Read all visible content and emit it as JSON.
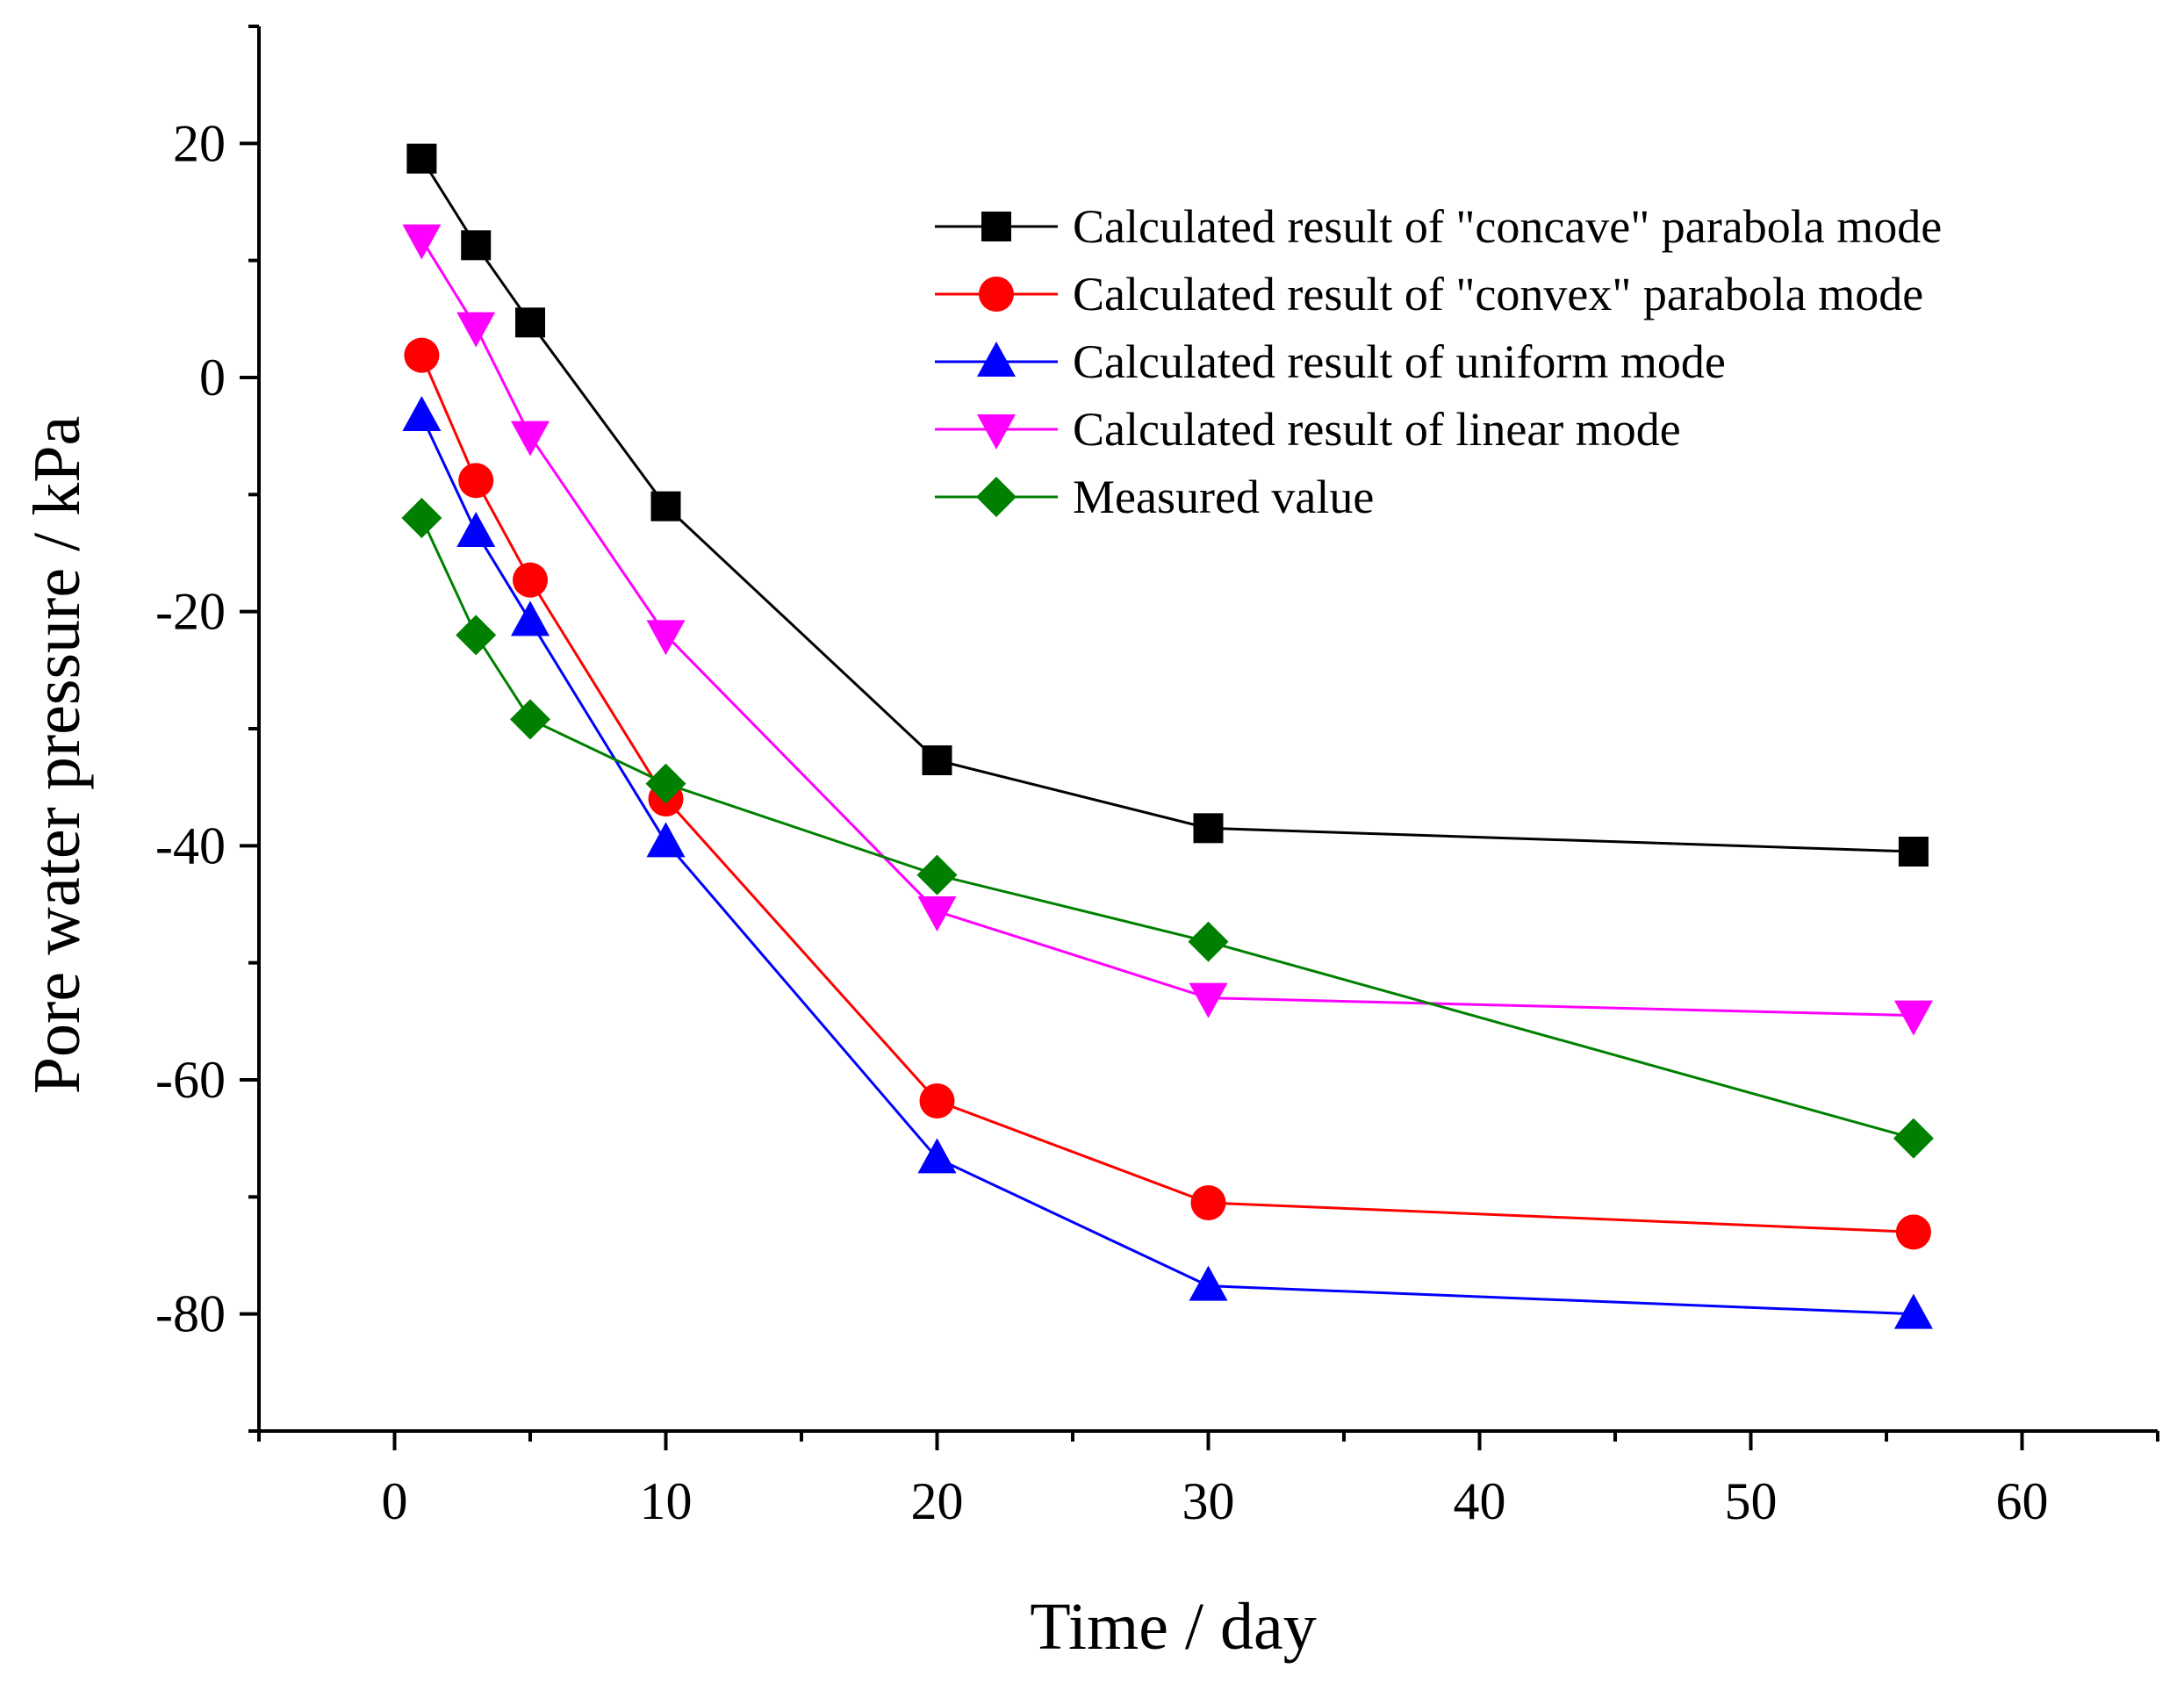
{
  "chart_data": {
    "type": "line",
    "title": "",
    "xlabel": "Time / day",
    "ylabel": "Pore water pressure / kPa",
    "xlim": [
      -5,
      65
    ],
    "ylim": [
      -90,
      30
    ],
    "xticks": [
      0,
      10,
      20,
      30,
      40,
      50,
      60
    ],
    "xtick_labels": [
      "0",
      "10",
      "20",
      "30",
      "40",
      "50",
      "60"
    ],
    "yticks": [
      20,
      0,
      -20,
      -40,
      -60,
      -80
    ],
    "ytick_labels": [
      "20",
      "0",
      "-20",
      "-40",
      "-60",
      "-80"
    ],
    "grid": false,
    "legend_position": "top-right",
    "x": [
      1,
      3,
      5,
      10,
      20,
      30,
      56
    ],
    "series": [
      {
        "name": "Calculated result of \"concave\" parabola mode",
        "marker": "square",
        "color": "#000000",
        "values": [
          18.7,
          11.3,
          4.7,
          -11.0,
          -32.7,
          -38.5,
          -40.5
        ]
      },
      {
        "name": "Calculated result of \"convex\" parabola mode",
        "marker": "circle",
        "color": "#ff0000",
        "values": [
          1.9,
          -8.8,
          -17.3,
          -36.0,
          -61.8,
          -70.5,
          -73.0
        ]
      },
      {
        "name": "Calculated result of uniform mode",
        "marker": "triangle-up",
        "color": "#0000ff",
        "values": [
          -3.3,
          -13.2,
          -20.8,
          -39.7,
          -66.7,
          -77.6,
          -80.0
        ]
      },
      {
        "name": "Calculated result of linear mode",
        "marker": "triangle-down",
        "color": "#ff00ff",
        "values": [
          11.8,
          4.3,
          -5.0,
          -22.0,
          -45.6,
          -53.0,
          -54.5
        ]
      },
      {
        "name": "Measured value",
        "marker": "diamond",
        "color": "#008000",
        "values": [
          -12.0,
          -22.0,
          -29.2,
          -34.7,
          -42.5,
          -48.2,
          -65.0
        ]
      }
    ]
  }
}
